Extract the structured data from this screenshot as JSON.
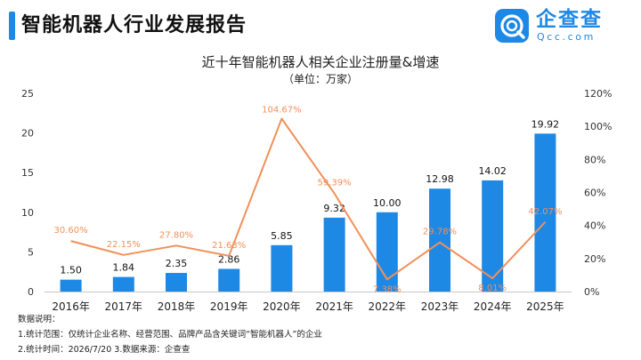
{
  "report": {
    "title": "智能机器人行业发展报告"
  },
  "logo": {
    "name": "企查查",
    "domain": "Qcc.com",
    "icon": "qcc-logo-icon"
  },
  "notes": {
    "heading": "数据说明：",
    "line1": "1.统计范围：仅统计企业名称、经营范围、品牌产品含关键词“智能机器人”的企业",
    "line2": "2.统计时间：2026/7/20  3.数据来源：企查查"
  },
  "colors": {
    "bar": "#1e88e5",
    "line": "#f0905a",
    "accent": "#1e88e5"
  },
  "chart_data": {
    "type": "bar",
    "title": "近十年智能机器人相关企业注册量&增速",
    "subtitle": "（单位：万家）",
    "categories": [
      "2016年",
      "2017年",
      "2018年",
      "2019年",
      "2020年",
      "2021年",
      "2022年",
      "2023年",
      "2024年",
      "2025年"
    ],
    "series": [
      {
        "type": "bar",
        "axis": "left",
        "values": [
          1.5,
          1.84,
          2.35,
          2.86,
          5.85,
          9.32,
          10.0,
          12.98,
          14.02,
          19.92
        ],
        "labels": [
          "1.50",
          "1.84",
          "2.35",
          "2.86",
          "5.85",
          "9.32",
          "10.00",
          "12.98",
          "14.02",
          "19.92"
        ]
      },
      {
        "type": "line",
        "axis": "right",
        "values": [
          30.6,
          22.15,
          27.8,
          21.63,
          104.67,
          59.39,
          7.38,
          29.78,
          8.01,
          42.07
        ],
        "labels": [
          "30.60%",
          "22.15%",
          "27.80%",
          "21.63%",
          "104.67%",
          "59.39%",
          "7.38%",
          "29.78%",
          "8.01%",
          "42.07%"
        ]
      }
    ],
    "y_left": {
      "range": [
        0,
        25
      ],
      "ticks": [
        "0",
        "5",
        "10",
        "15",
        "20",
        "25"
      ]
    },
    "y_right": {
      "range": [
        0,
        120
      ],
      "ticks": [
        "0%",
        "20%",
        "40%",
        "60%",
        "80%",
        "100%",
        "120%"
      ]
    },
    "grid": false,
    "legend": "none"
  }
}
